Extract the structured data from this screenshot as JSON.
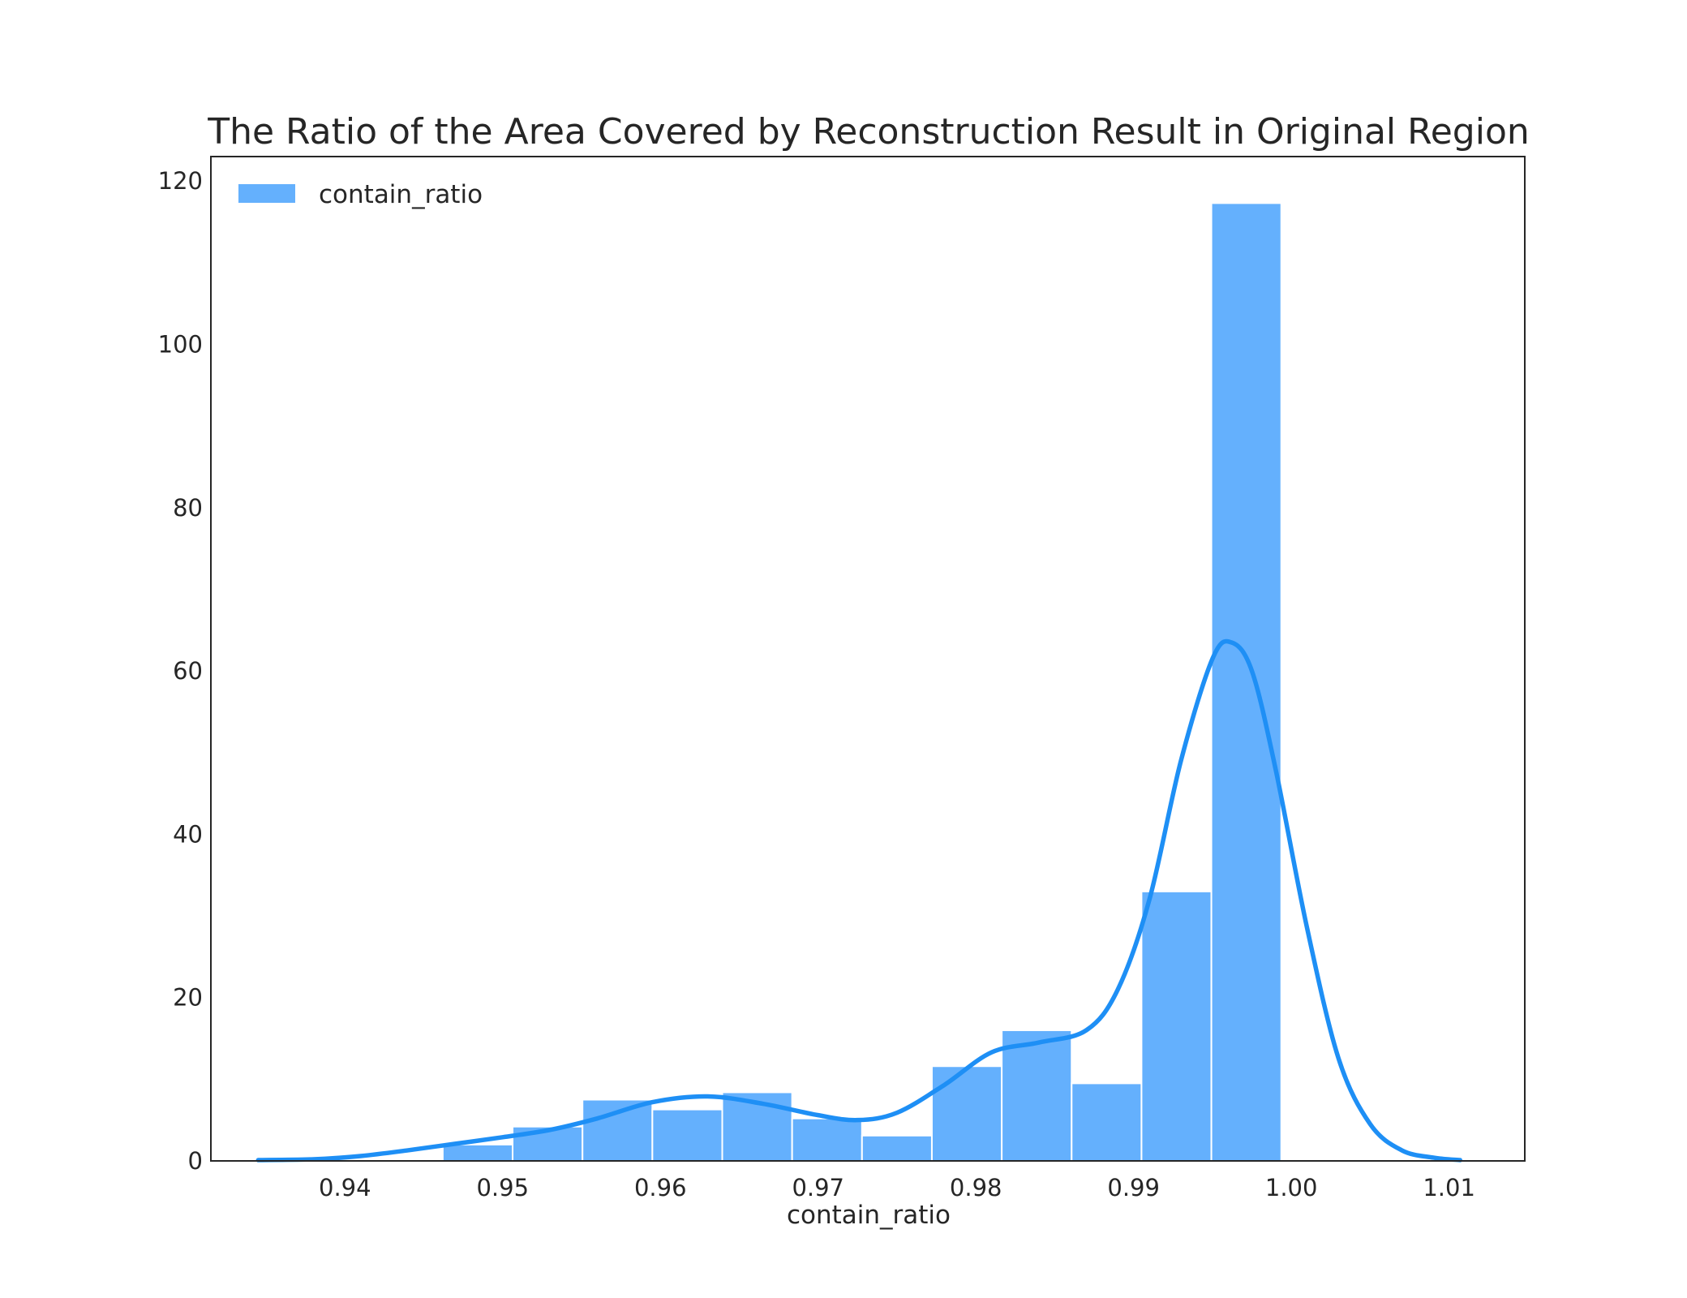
{
  "chart_data": {
    "type": "bar",
    "title": "The Ratio of the Area Covered by Reconstruction Result in Original Region",
    "xlabel": "contain_ratio",
    "ylabel": "",
    "xlim": [
      0.9315,
      1.0148
    ],
    "ylim": [
      0,
      123
    ],
    "xticks": [
      0.94,
      0.95,
      0.96,
      0.97,
      0.98,
      0.99,
      1.0,
      1.01
    ],
    "xtick_labels": [
      "0.94",
      "0.95",
      "0.96",
      "0.97",
      "0.98",
      "0.99",
      "1.00",
      "1.01"
    ],
    "yticks": [
      0,
      20,
      40,
      60,
      80,
      100,
      120
    ],
    "ytick_labels": [
      "0",
      "20",
      "40",
      "60",
      "80",
      "100",
      "120"
    ],
    "grid": false,
    "legend": {
      "position": "top-left",
      "entries": [
        "contain_ratio"
      ]
    },
    "histogram": {
      "bin_start": 0.9462,
      "bin_width": 0.00443,
      "values": [
        2.0,
        4.2,
        7.5,
        6.3,
        8.4,
        5.2,
        3.1,
        11.6,
        16.0,
        9.5,
        33.0,
        117.3
      ]
    },
    "kde": {
      "x": [
        0.9345,
        0.938,
        0.941,
        0.944,
        0.947,
        0.95,
        0.953,
        0.956,
        0.9595,
        0.963,
        0.9665,
        0.97,
        0.9725,
        0.975,
        0.978,
        0.981,
        0.984,
        0.987,
        0.989,
        0.991,
        0.993,
        0.995,
        0.9962,
        0.9975,
        0.999,
        1.001,
        1.003,
        1.005,
        1.007,
        1.009,
        1.0107
      ],
      "y": [
        0.1,
        0.2,
        0.6,
        1.3,
        2.1,
        2.9,
        3.8,
        5.2,
        7.2,
        7.9,
        7.0,
        5.6,
        5.0,
        5.9,
        9.3,
        13.3,
        14.5,
        16.0,
        21.0,
        32.0,
        49.0,
        61.5,
        63.5,
        60.0,
        48.0,
        28.5,
        12.5,
        4.5,
        1.3,
        0.4,
        0.1
      ]
    },
    "colors": {
      "bars": "#64b0fd",
      "bar_edge": "#ffffff",
      "kde": "#1e8ff5",
      "axes": "#262626"
    }
  }
}
